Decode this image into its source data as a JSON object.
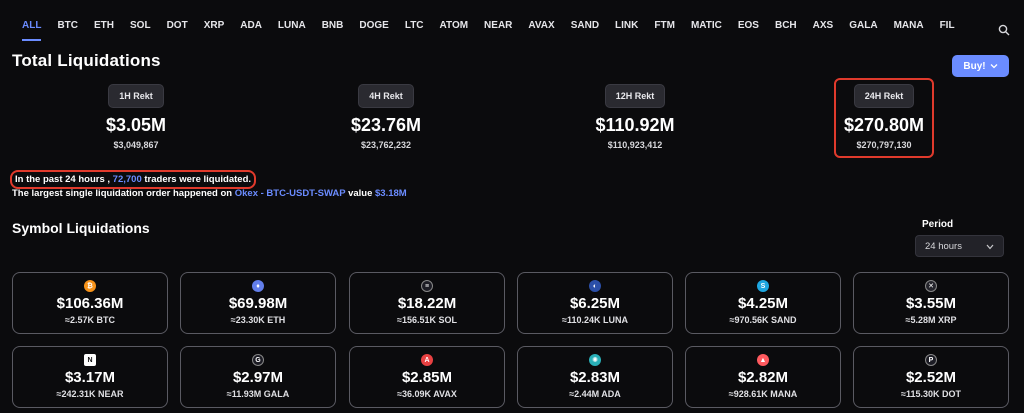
{
  "tabs": [
    "ALL",
    "BTC",
    "ETH",
    "SOL",
    "DOT",
    "XRP",
    "ADA",
    "LUNA",
    "BNB",
    "DOGE",
    "LTC",
    "ATOM",
    "NEAR",
    "AVAX",
    "SAND",
    "LINK",
    "FTM",
    "MATIC",
    "EOS",
    "BCH",
    "AXS",
    "GALA",
    "MANA",
    "FIL"
  ],
  "active_tab": "ALL",
  "title": "Total Liquidations",
  "buy_button": "Buy!",
  "stats": [
    {
      "label": "1H Rekt",
      "value": "$3.05M",
      "exact": "$3,049,867"
    },
    {
      "label": "4H Rekt",
      "value": "$23.76M",
      "exact": "$23,762,232"
    },
    {
      "label": "12H Rekt",
      "value": "$110.92M",
      "exact": "$110,923,412"
    },
    {
      "label": "24H Rekt",
      "value": "$270.80M",
      "exact": "$270,797,130"
    }
  ],
  "info": {
    "line1_a": "In the past 24 hours , ",
    "line1_count": "72,700",
    "line1_b": " traders were liquidated.",
    "line2_a": "The largest single liquidation order happened on ",
    "line2_exchange": "Okex - BTC-USDT-SWAP",
    "line2_b": " value ",
    "line2_value": "$3.18M"
  },
  "symbol_title": "Symbol Liquidations",
  "period": {
    "label": "Period",
    "value": "24 hours"
  },
  "cards": [
    {
      "amount": "$106.36M",
      "sub": "≈2.57K BTC",
      "icon": "btc-icon",
      "color": "#f7931a",
      "glyph": "₿"
    },
    {
      "amount": "$69.98M",
      "sub": "≈23.30K ETH",
      "icon": "eth-icon",
      "color": "#627eea",
      "glyph": "♦"
    },
    {
      "amount": "$18.22M",
      "sub": "≈156.51K SOL",
      "icon": "sol-icon",
      "color": "#1c1c24",
      "glyph": "≡"
    },
    {
      "amount": "$6.25M",
      "sub": "≈110.24K LUNA",
      "icon": "luna-icon",
      "color": "#2b4fa8",
      "glyph": "◐"
    },
    {
      "amount": "$4.25M",
      "sub": "≈970.56K SAND",
      "icon": "sand-icon",
      "color": "#1ea7e1",
      "glyph": "S"
    },
    {
      "amount": "$3.55M",
      "sub": "≈5.28M XRP",
      "icon": "xrp-icon",
      "color": "#25252c",
      "glyph": "✕"
    },
    {
      "amount": "$3.17M",
      "sub": "≈242.31K NEAR",
      "icon": "near-icon",
      "color": "#ffffff",
      "glyph": "N"
    },
    {
      "amount": "$2.97M",
      "sub": "≈11.93M GALA",
      "icon": "gala-icon",
      "color": "#1c1c24",
      "glyph": "G"
    },
    {
      "amount": "$2.85M",
      "sub": "≈36.09K AVAX",
      "icon": "avax-icon",
      "color": "#e84142",
      "glyph": "A"
    },
    {
      "amount": "$2.83M",
      "sub": "≈2.44M ADA",
      "icon": "ada-icon",
      "color": "#2ab0b8",
      "glyph": "✺"
    },
    {
      "amount": "$2.82M",
      "sub": "≈928.61K MANA",
      "icon": "mana-icon",
      "color": "#ff5a5f",
      "glyph": "▲"
    },
    {
      "amount": "$2.52M",
      "sub": "≈115.30K DOT",
      "icon": "dot-icon",
      "color": "#1c1c24",
      "glyph": "P"
    }
  ],
  "colors": {
    "accent": "#6b8cff",
    "highlight": "#e03a2c",
    "background": "#0b0b0d"
  }
}
